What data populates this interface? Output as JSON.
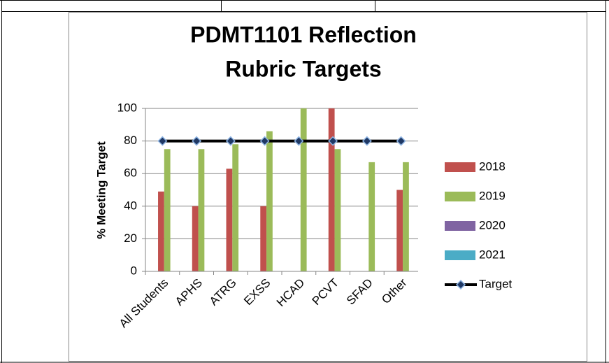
{
  "chart_data": {
    "type": "bar",
    "title": [
      "PDMT1101 Reflection",
      "Rubric Targets"
    ],
    "y_label": "% Meeting Target",
    "categories": [
      "All Students",
      "APHS",
      "ATRG",
      "EXSS",
      "HCAD",
      "PCVT",
      "SFAD",
      "Other"
    ],
    "series": [
      {
        "name": "2018",
        "color": "#c0504d",
        "values": [
          49,
          40,
          63,
          40,
          null,
          100,
          null,
          50
        ]
      },
      {
        "name": "2019",
        "color": "#9bbb59",
        "values": [
          75,
          75,
          78,
          86,
          100,
          75,
          67,
          67
        ]
      },
      {
        "name": "2020",
        "color": "#8064a2",
        "values": [
          null,
          null,
          null,
          null,
          null,
          null,
          null,
          null
        ]
      },
      {
        "name": "2021",
        "color": "#4bacc6",
        "values": [
          null,
          null,
          null,
          null,
          null,
          null,
          null,
          null
        ]
      },
      {
        "name": "Target",
        "type": "line",
        "color": "#000000",
        "values": [
          80,
          80,
          80,
          80,
          80,
          80,
          80,
          80
        ]
      }
    ],
    "ylim": [
      0,
      100
    ],
    "yticks": [
      0,
      20,
      40,
      60,
      80,
      100
    ],
    "grid": true,
    "legend": "right"
  }
}
